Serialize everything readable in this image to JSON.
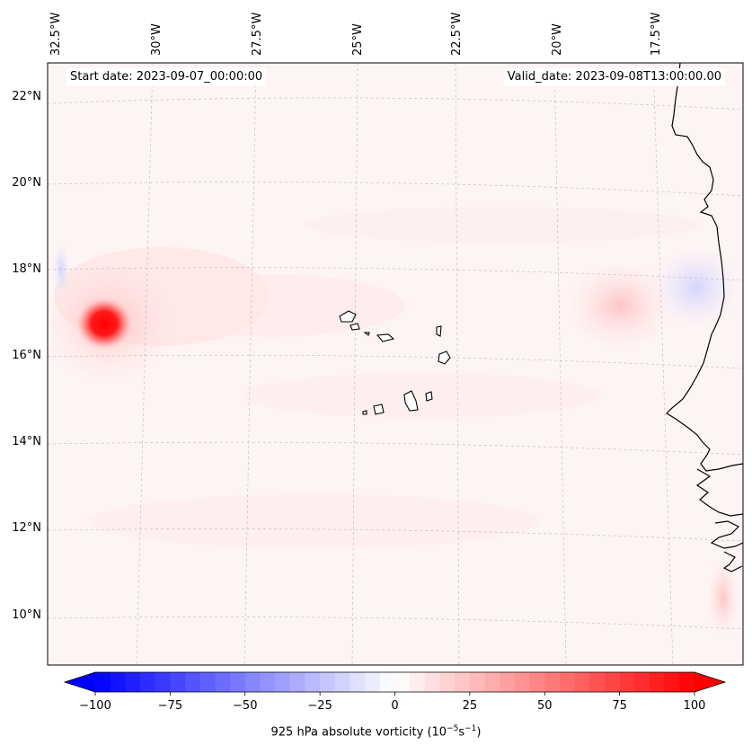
{
  "header": {
    "start_date": "Start date: 2023-09-07_00:00:00",
    "valid_date": "Valid_date: 2023-09-08T13:00:00.00"
  },
  "map": {
    "lon_labels": [
      "32.5°W",
      "30°W",
      "27.5°W",
      "25°W",
      "22.5°W",
      "20°W",
      "17.5°W"
    ],
    "lat_labels": [
      "22°N",
      "20°N",
      "18°N",
      "16°N",
      "14°N",
      "12°N",
      "10°N"
    ]
  },
  "colorbar": {
    "min": -100,
    "max": 100,
    "step": 5,
    "tick_labels": [
      "−100",
      "−75",
      "−50",
      "−25",
      "0",
      "25",
      "50",
      "75",
      "100"
    ],
    "label_main": "925 hPa absolute vorticity (10",
    "label_exp1": "−5",
    "label_mid": "s",
    "label_exp2": "−1",
    "label_end": ")",
    "colors": {
      "neg": "#0000ff",
      "zero": "#ffffff",
      "pos": "#ff0000"
    }
  }
}
